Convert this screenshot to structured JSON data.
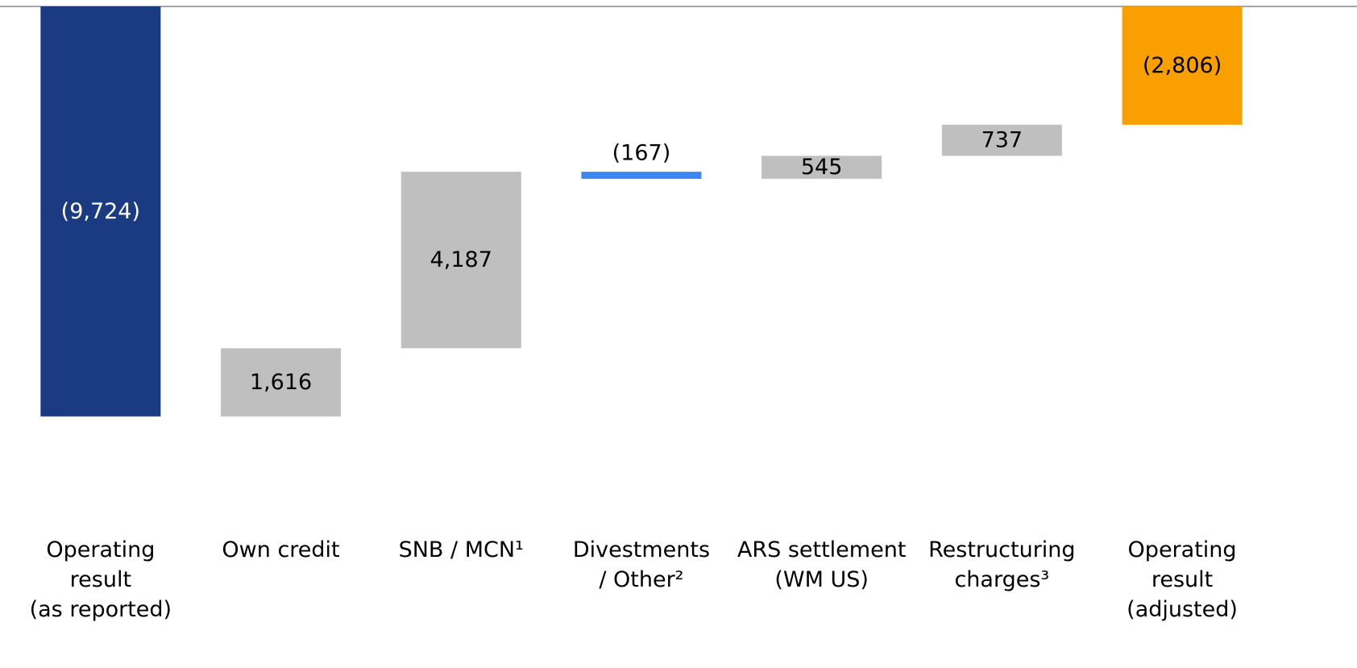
{
  "chart_data": {
    "type": "waterfall",
    "categories": [
      [
        "Operating",
        "result",
        "(as reported)"
      ],
      [
        "Own credit"
      ],
      [
        "SNB / MCN¹"
      ],
      [
        "Divestments",
        "/ Other²"
      ],
      [
        "ARS settlement",
        "(WM US)"
      ],
      [
        "Restructuring",
        "charges³"
      ],
      [
        "Operating",
        "result",
        "(adjusted)"
      ]
    ],
    "values": [
      -9724,
      1616,
      4187,
      -167,
      545,
      737,
      -2806
    ],
    "value_labels": [
      "(9,724)",
      "1,616",
      "4,187",
      "(167)",
      "545",
      "737",
      "(2,806)"
    ],
    "colors": [
      "#1a3a82",
      "#bfbfbf",
      "#bfbfbf",
      "#3b86f0",
      "#bfbfbf",
      "#bfbfbf",
      "#f9a000"
    ],
    "ylim": [
      -15500,
      0
    ]
  }
}
